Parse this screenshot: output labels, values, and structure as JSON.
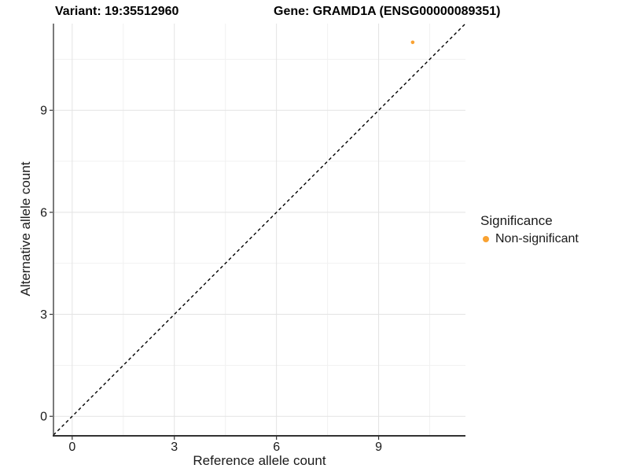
{
  "header": {
    "variant_title": "Variant: 19:35512960",
    "gene_title": "Gene: GRAMD1A (ENSG00000089351)"
  },
  "legend": {
    "title": "Significance",
    "items": [
      {
        "label": "Non-significant",
        "color": "#F9A232",
        "shape": "circle"
      }
    ]
  },
  "colors": {
    "point_orange": "#F9A232",
    "grid_major": "#E3E3E3",
    "grid_minor": "#F1F1F1",
    "axis_line": "#333333",
    "text": "#1a1a1a",
    "reference_line": "#000000",
    "background": "#ffffff"
  },
  "chart_data": {
    "type": "scatter",
    "title": "Variant: 19:35512960 | Gene: GRAMD1A (ENSG00000089351)",
    "xlabel": "Reference allele count",
    "ylabel": "Alternative allele count",
    "xlim": [
      -0.55,
      11.55
    ],
    "ylim": [
      -0.55,
      11.55
    ],
    "x_ticks": [
      0,
      3,
      6,
      9
    ],
    "y_ticks": [
      0,
      3,
      6,
      9
    ],
    "x_minor_ticks": [
      1.5,
      4.5,
      7.5,
      10.5
    ],
    "y_minor_ticks": [
      1.5,
      4.5,
      7.5,
      10.5
    ],
    "grid": true,
    "legend_position": "right",
    "reference_line": {
      "kind": "identity",
      "slope": 1,
      "intercept": 0,
      "style": "dashed",
      "color": "#000000"
    },
    "series": [
      {
        "name": "Non-significant",
        "color": "#F9A232",
        "point_radius": 2.3,
        "points": [
          {
            "x": 10,
            "y": 11
          }
        ]
      }
    ]
  }
}
